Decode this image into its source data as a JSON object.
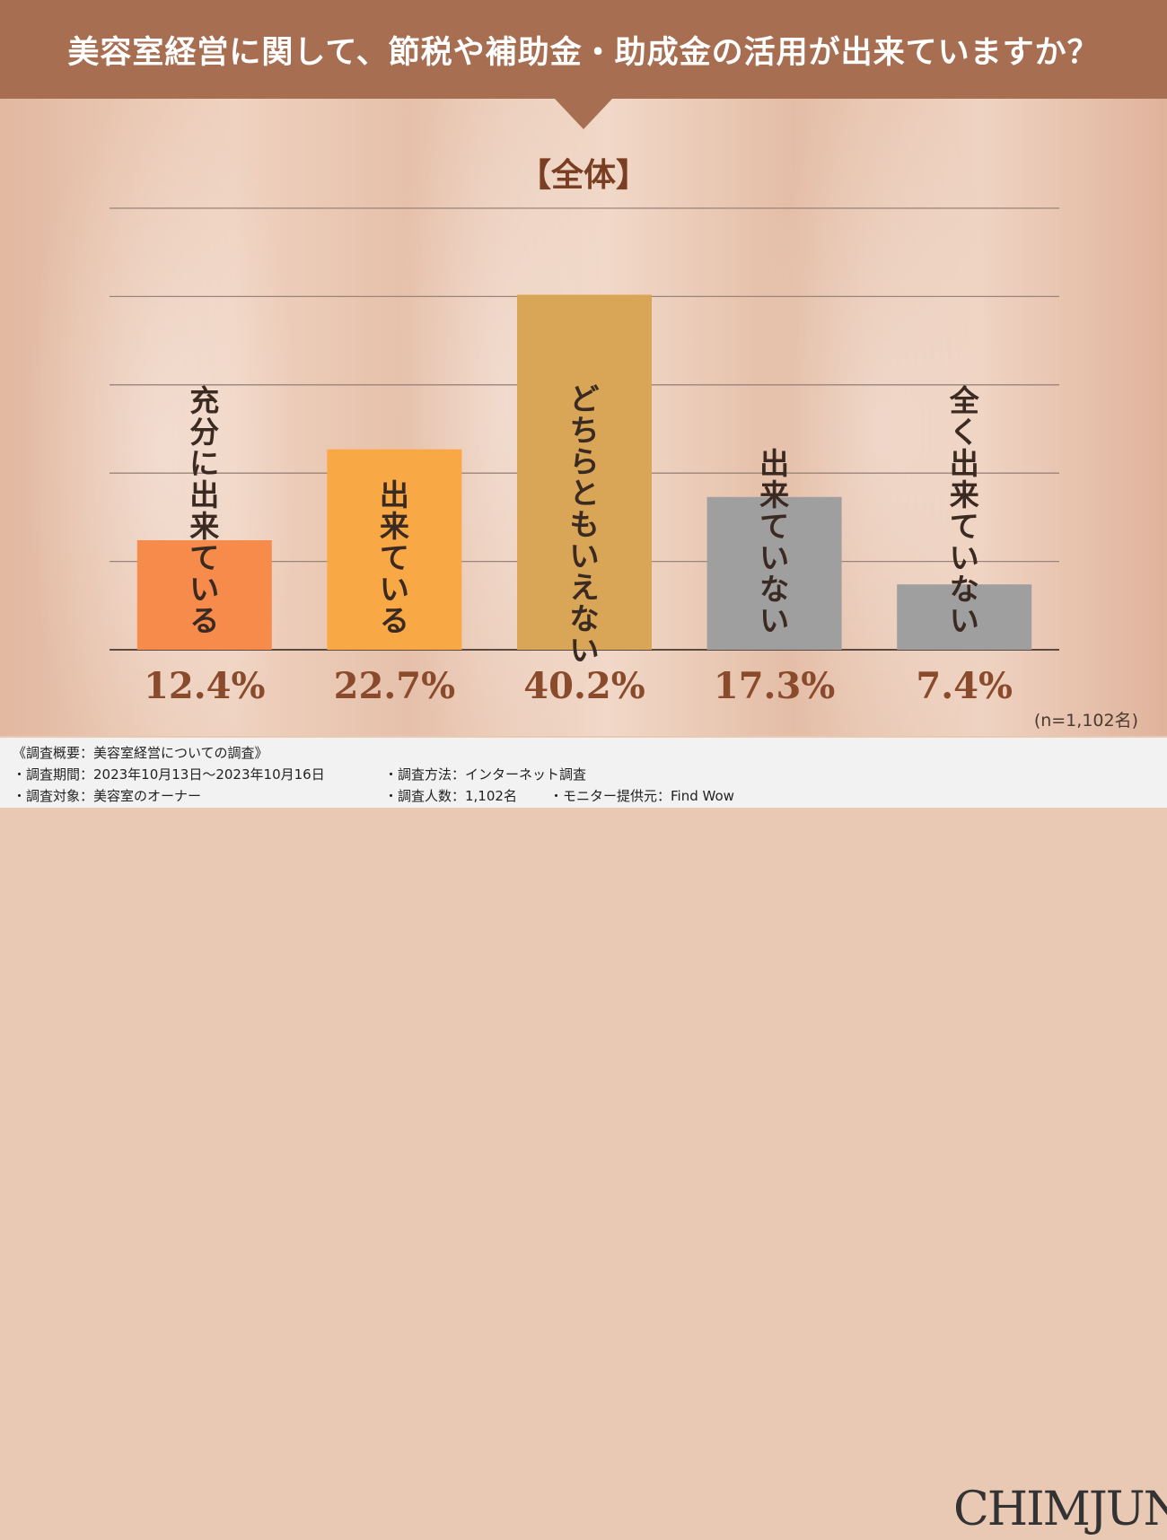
{
  "header": {
    "title": "美容室経営に関して、節税や補助金・助成金の活用が出来ていますか？"
  },
  "chart_data": {
    "type": "bar",
    "title": "【全体】",
    "categories": [
      "充分に出来ている",
      "出来ている",
      "どちらともいえない",
      "出来ていない",
      "全く出来ていない"
    ],
    "values": [
      12.4,
      22.7,
      40.2,
      17.3,
      7.4
    ],
    "value_labels": [
      "12.4%",
      "22.7%",
      "40.2%",
      "17.3%",
      "7.4%"
    ],
    "colors": [
      "#f68b4c",
      "#f9a846",
      "#d9a556",
      "#a09f9f",
      "#a09f9f"
    ],
    "ylim": [
      0,
      50
    ],
    "grid": true,
    "note": "(n=1,102名)"
  },
  "footer": {
    "survey_title": "《調査概要：美容室経営についての調査》",
    "period": "・調査期間：2023年10月13日～2023年10月16日",
    "method": "・調査方法：インターネット調査",
    "target": "・調査対象：美容室のオーナー",
    "count": "・調査人数：1,102名",
    "provider": "・モニター提供元：Find Wow",
    "logo": "CHIMJUN"
  }
}
